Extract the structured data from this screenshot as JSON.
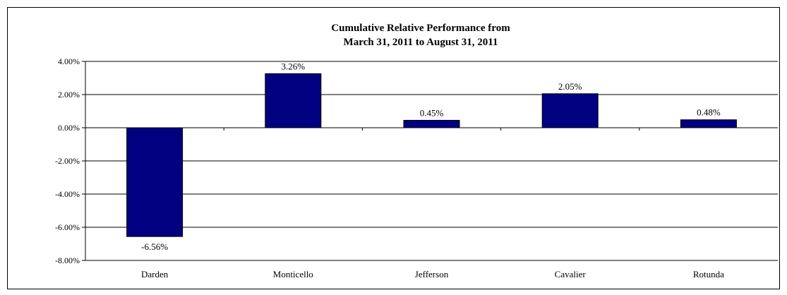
{
  "chart_data": {
    "type": "bar",
    "title_line1": "Cumulative Relative Performance from",
    "title_line2": "March 31, 2011 to August 31, 2011",
    "categories": [
      "Darden",
      "Monticello",
      "Jefferson",
      "Cavalier",
      "Rotunda"
    ],
    "values": [
      -6.56,
      3.26,
      0.45,
      2.05,
      0.48
    ],
    "data_labels": [
      "-6.56%",
      "3.26%",
      "0.45%",
      "2.05%",
      "0.48%"
    ],
    "ylim": [
      -8,
      4
    ],
    "yticks": [
      4,
      2,
      0,
      -2,
      -4,
      -6,
      -8
    ],
    "ytick_labels": [
      "4.00%",
      "2.00%",
      "0.00%",
      "-2.00%",
      "-4.00%",
      "-6.00%",
      "-8.00%"
    ],
    "grid": true,
    "bar_color": "#000080",
    "xlabel": "",
    "ylabel": ""
  }
}
